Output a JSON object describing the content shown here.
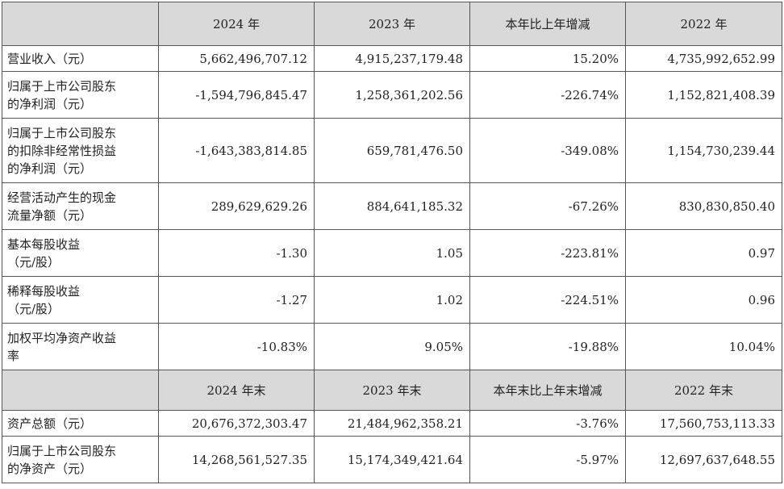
{
  "header1": [
    "2024 年",
    "2023 年",
    "本年比上年增减",
    "2022 年"
  ],
  "rows1": [
    {
      "label": "营业收入（元）",
      "values": [
        "5,662,496,707.12",
        "4,915,237,179.48",
        "15.20%",
        "4,735,992,652.99"
      ]
    },
    {
      "label": "归属于上市公司股东\n的净利润（元）",
      "values": [
        "-1,594,796,845.47",
        "1,258,361,202.56",
        "-226.74%",
        "1,152,821,408.39"
      ]
    },
    {
      "label": "归属于上市公司股东\n的扣除非经常性损益\n的净利润（元）",
      "values": [
        "-1,643,383,814.85",
        "659,781,476.50",
        "-349.08%",
        "1,154,730,239.44"
      ]
    },
    {
      "label": "经营活动产生的现金\n流量净额（元）",
      "values": [
        "289,629,629.26",
        "884,641,185.32",
        "-67.26%",
        "830,830,850.40"
      ]
    },
    {
      "label": "基本每股收益\n（元/股）",
      "values": [
        "-1.30",
        "1.05",
        "-223.81%",
        "0.97"
      ]
    },
    {
      "label": "稀释每股收益\n（元/股）",
      "values": [
        "-1.27",
        "1.02",
        "-224.51%",
        "0.96"
      ]
    },
    {
      "label": "加权平均净资产收益\n率",
      "values": [
        "-10.83%",
        "9.05%",
        "-19.88%",
        "10.04%"
      ]
    }
  ],
  "header2": [
    "2024 年末",
    "2023 年末",
    "本年末比上年末增减",
    "2022 年末"
  ],
  "rows2": [
    {
      "label": "资产总额（元）",
      "values": [
        "20,676,372,303.47",
        "21,484,962,358.21",
        "-3.76%",
        "17,560,753,113.33"
      ]
    },
    {
      "label": "归属于上市公司股东\n的净资产（元）",
      "values": [
        "14,268,561,527.35",
        "15,174,349,421.64",
        "-5.97%",
        "12,697,637,648.55"
      ]
    }
  ]
}
